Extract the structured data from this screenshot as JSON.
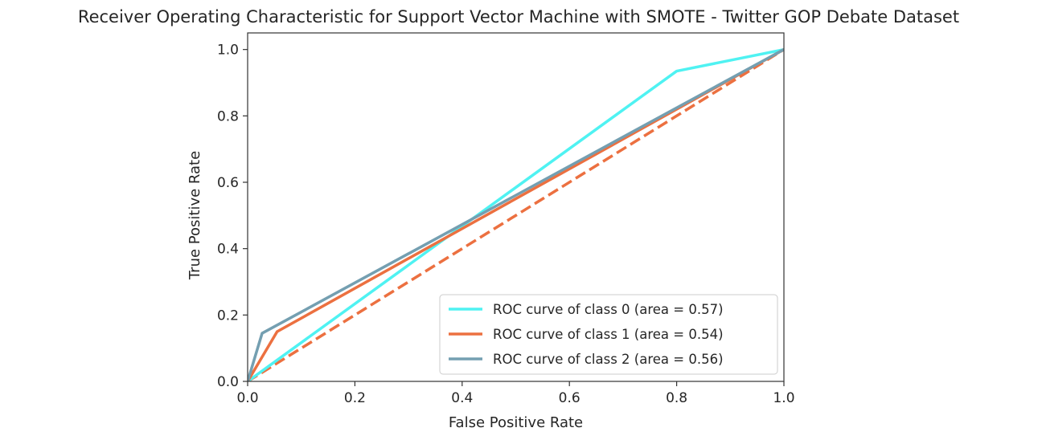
{
  "chart_data": {
    "type": "line",
    "title": "Receiver Operating Characteristic for Support Vector Machine with SMOTE - Twitter GOP Debate Dataset",
    "xlabel": "False Positive Rate",
    "ylabel": "True Positive Rate",
    "xlim": [
      0.0,
      1.0
    ],
    "ylim": [
      0.0,
      1.05
    ],
    "xticks": [
      "0.0",
      "0.2",
      "0.4",
      "0.6",
      "0.8",
      "1.0"
    ],
    "yticks": [
      "0.0",
      "0.2",
      "0.4",
      "0.6",
      "0.8",
      "1.0"
    ],
    "grid": false,
    "legend_position": "lower-right",
    "series": [
      {
        "name": "ROC curve of class 0 (area = 0.57)",
        "color": "#4ff2f2",
        "x": [
          0.0,
          0.8,
          1.0
        ],
        "y": [
          0.0,
          0.935,
          1.0
        ]
      },
      {
        "name": "ROC curve of class 1 (area = 0.54)",
        "color": "#ec7040",
        "x": [
          0.0,
          0.055,
          1.0
        ],
        "y": [
          0.0,
          0.15,
          1.0
        ]
      },
      {
        "name": "ROC curve of class 2 (area = 0.56)",
        "color": "#749fb1",
        "x": [
          0.0,
          0.027,
          1.0
        ],
        "y": [
          0.0,
          0.145,
          1.0
        ]
      }
    ],
    "diagonal": {
      "style": "dashed",
      "color": "#ec7040",
      "x": [
        0.0,
        1.0
      ],
      "y": [
        0.0,
        1.0
      ]
    }
  }
}
